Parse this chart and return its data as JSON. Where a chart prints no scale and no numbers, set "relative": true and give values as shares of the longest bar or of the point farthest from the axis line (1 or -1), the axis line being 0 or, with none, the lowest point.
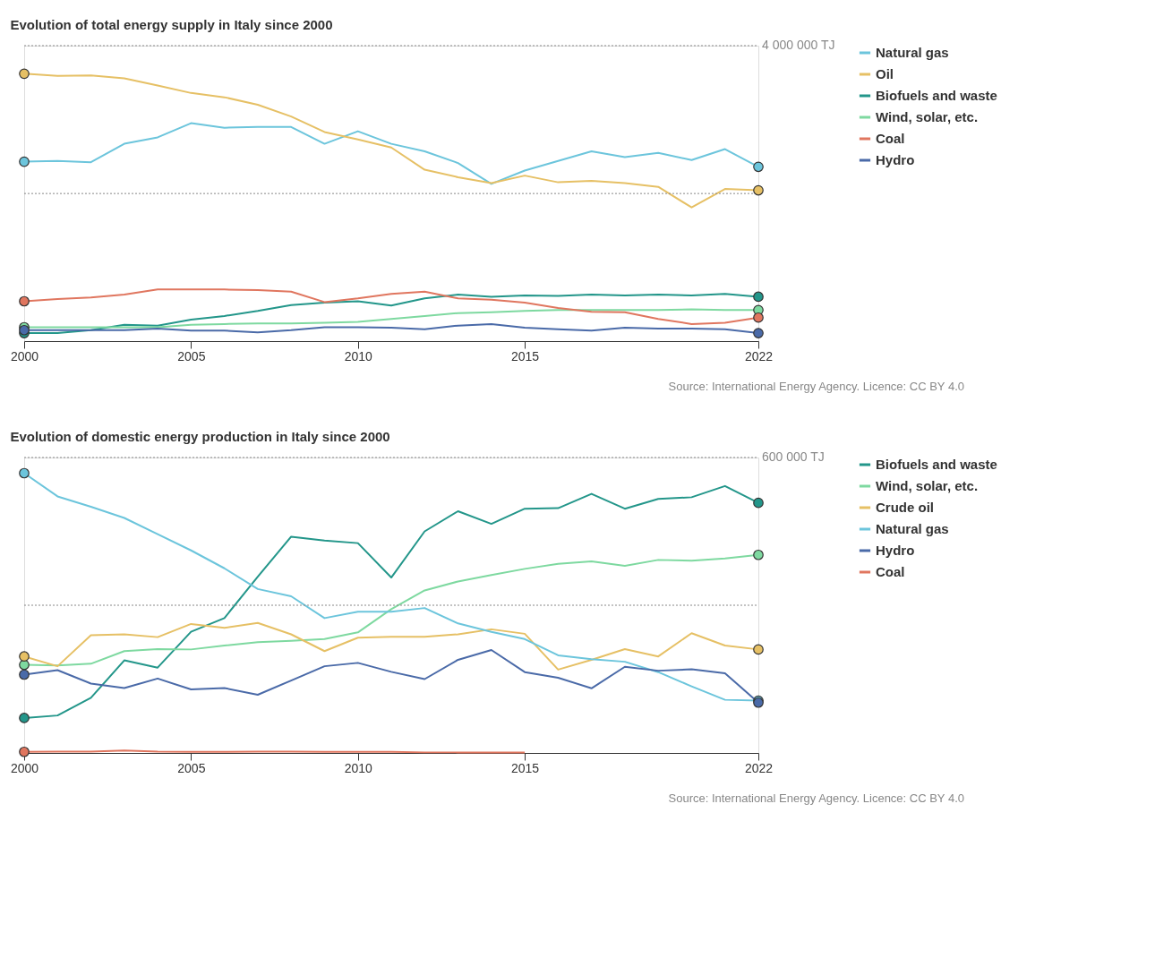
{
  "chart_data": [
    {
      "type": "line",
      "title": "Evolution of total energy supply in Italy since 2000",
      "relative": true,
      "x": [
        2000,
        2001,
        2002,
        2003,
        2004,
        2005,
        2006,
        2007,
        2008,
        2009,
        2010,
        2011,
        2012,
        2013,
        2014,
        2015,
        2016,
        2017,
        2018,
        2019,
        2020,
        2021,
        2022
      ],
      "xlim": [
        2000,
        2022
      ],
      "xticks": [
        2000,
        2005,
        2010,
        2015,
        2022
      ],
      "ref_lines": [
        {
          "axis": "y",
          "value": 0.552,
          "label": null,
          "line_style": "dotted"
        },
        {
          "axis": "y",
          "value": 1.105,
          "label": "4 000 000 TJ",
          "line_style": "dotted"
        }
      ],
      "legend": "right",
      "line_style": "solid",
      "annotations": [
        "Source: International Energy Agency. Licence: CC BY 4.0"
      ],
      "series": [
        {
          "name": "Natural gas",
          "color": "#6cc5dc",
          "values": [
            0.671,
            0.674,
            0.669,
            0.738,
            0.762,
            0.815,
            0.798,
            0.801,
            0.801,
            0.738,
            0.785,
            0.738,
            0.71,
            0.666,
            0.588,
            0.638,
            0.674,
            0.71,
            0.688,
            0.704,
            0.677,
            0.718,
            0.652
          ]
        },
        {
          "name": "Oil",
          "color": "#e6c065",
          "values": [
            1,
            0.992,
            0.994,
            0.983,
            0.956,
            0.928,
            0.912,
            0.884,
            0.84,
            0.782,
            0.754,
            0.724,
            0.641,
            0.613,
            0.591,
            0.619,
            0.594,
            0.599,
            0.591,
            0.577,
            0.5,
            0.569,
            0.564
          ]
        },
        {
          "name": "Biofuels and waste",
          "color": "#23968a",
          "values": [
            0.03,
            0.03,
            0.041,
            0.061,
            0.058,
            0.08,
            0.094,
            0.113,
            0.135,
            0.144,
            0.149,
            0.133,
            0.16,
            0.174,
            0.166,
            0.171,
            0.169,
            0.174,
            0.171,
            0.174,
            0.171,
            0.177,
            0.166
          ]
        },
        {
          "name": "Wind, solar, etc.",
          "color": "#7ed9a0",
          "values": [
            0.052,
            0.052,
            0.052,
            0.052,
            0.052,
            0.061,
            0.064,
            0.066,
            0.066,
            0.069,
            0.072,
            0.083,
            0.094,
            0.105,
            0.108,
            0.113,
            0.116,
            0.116,
            0.116,
            0.116,
            0.119,
            0.116,
            0.116
          ]
        },
        {
          "name": "Coal",
          "color": "#e0765f",
          "values": [
            0.149,
            0.157,
            0.163,
            0.174,
            0.193,
            0.193,
            0.193,
            0.191,
            0.185,
            0.146,
            0.16,
            0.177,
            0.185,
            0.16,
            0.155,
            0.144,
            0.124,
            0.11,
            0.108,
            0.083,
            0.064,
            0.069,
            0.088
          ]
        },
        {
          "name": "Hydro",
          "color": "#4a6aa8",
          "values": [
            0.041,
            0.041,
            0.041,
            0.041,
            0.047,
            0.039,
            0.039,
            0.033,
            0.041,
            0.052,
            0.052,
            0.05,
            0.044,
            0.058,
            0.064,
            0.05,
            0.044,
            0.039,
            0.05,
            0.047,
            0.047,
            0.044,
            0.03
          ]
        },
        {
          "type": "scatter",
          "marker": "circle",
          "color": "#6cc5dc",
          "values": [
            0.671,
            null,
            null,
            null,
            null,
            null,
            null,
            null,
            null,
            null,
            null,
            null,
            null,
            null,
            null,
            null,
            null,
            null,
            null,
            null,
            null,
            null,
            0.652
          ]
        },
        {
          "type": "scatter",
          "marker": "circle",
          "color": "#e6c065",
          "values": [
            1,
            null,
            null,
            null,
            null,
            null,
            null,
            null,
            null,
            null,
            null,
            null,
            null,
            null,
            null,
            null,
            null,
            null,
            null,
            null,
            null,
            null,
            0.564
          ]
        },
        {
          "type": "scatter",
          "marker": "circle",
          "color": "#23968a",
          "values": [
            0.03,
            null,
            null,
            null,
            null,
            null,
            null,
            null,
            null,
            null,
            null,
            null,
            null,
            null,
            null,
            null,
            null,
            null,
            null,
            null,
            null,
            null,
            0.166
          ]
        },
        {
          "type": "scatter",
          "marker": "circle",
          "color": "#7ed9a0",
          "values": [
            0.052,
            null,
            null,
            null,
            null,
            null,
            null,
            null,
            null,
            null,
            null,
            null,
            null,
            null,
            null,
            null,
            null,
            null,
            null,
            null,
            null,
            null,
            0.116
          ]
        },
        {
          "type": "scatter",
          "marker": "circle",
          "color": "#e0765f",
          "values": [
            0.149,
            null,
            null,
            null,
            null,
            null,
            null,
            null,
            null,
            null,
            null,
            null,
            null,
            null,
            null,
            null,
            null,
            null,
            null,
            null,
            null,
            null,
            0.088
          ]
        },
        {
          "type": "scatter",
          "marker": "circle",
          "color": "#4a6aa8",
          "values": [
            0.041,
            null,
            null,
            null,
            null,
            null,
            null,
            null,
            null,
            null,
            null,
            null,
            null,
            null,
            null,
            null,
            null,
            null,
            null,
            null,
            null,
            null,
            0.03
          ]
        }
      ]
    },
    {
      "type": "line",
      "title": "Evolution of domestic energy production in Italy since 2000",
      "relative": true,
      "x": [
        2000,
        2001,
        2002,
        2003,
        2004,
        2005,
        2006,
        2007,
        2008,
        2009,
        2010,
        2011,
        2012,
        2013,
        2014,
        2015,
        2016,
        2017,
        2018,
        2019,
        2020,
        2021,
        2022
      ],
      "xlim": [
        2000,
        2022
      ],
      "xticks": [
        2000,
        2005,
        2010,
        2015,
        2022
      ],
      "ref_lines": [
        {
          "axis": "y",
          "value": 0.528,
          "label": null,
          "line_style": "dotted"
        },
        {
          "axis": "y",
          "value": 1.056,
          "label": "600 000 TJ",
          "line_style": "dotted"
        }
      ],
      "legend": "right",
      "line_style": "solid",
      "annotations": [
        "Source: International Energy Agency. Licence: CC BY 4.0"
      ],
      "series": [
        {
          "name": "Biofuels and waste",
          "color": "#23968a",
          "values": [
            0.125,
            0.134,
            0.197,
            0.331,
            0.305,
            0.433,
            0.482,
            0.63,
            0.773,
            0.759,
            0.75,
            0.627,
            0.792,
            0.864,
            0.819,
            0.873,
            0.875,
            0.926,
            0.873,
            0.908,
            0.914,
            0.954,
            0.894
          ]
        },
        {
          "name": "Wind, solar, etc.",
          "color": "#7ed9a0",
          "values": [
            0.315,
            0.313,
            0.319,
            0.364,
            0.371,
            0.37,
            0.384,
            0.396,
            0.401,
            0.407,
            0.431,
            0.514,
            0.581,
            0.613,
            0.636,
            0.658,
            0.676,
            0.685,
            0.669,
            0.69,
            0.687,
            0.695,
            0.708
          ]
        },
        {
          "name": "Crude oil",
          "color": "#e6c065",
          "values": [
            0.345,
            0.31,
            0.421,
            0.424,
            0.414,
            0.461,
            0.447,
            0.465,
            0.424,
            0.364,
            0.412,
            0.415,
            0.415,
            0.424,
            0.442,
            0.426,
            0.298,
            0.333,
            0.371,
            0.345,
            0.428,
            0.384,
            0.37
          ]
        },
        {
          "name": "Natural gas",
          "color": "#6cc5dc",
          "values": [
            1,
            0.917,
            0.88,
            0.84,
            0.782,
            0.724,
            0.66,
            0.586,
            0.56,
            0.482,
            0.505,
            0.505,
            0.518,
            0.463,
            0.433,
            0.407,
            0.349,
            0.335,
            0.326,
            0.289,
            0.238,
            0.19,
            0.187
          ]
        },
        {
          "name": "Hydro",
          "color": "#4a6aa8",
          "values": [
            0.28,
            0.296,
            0.248,
            0.232,
            0.266,
            0.227,
            0.232,
            0.208,
            0.259,
            0.31,
            0.322,
            0.29,
            0.264,
            0.333,
            0.368,
            0.289,
            0.269,
            0.231,
            0.308,
            0.294,
            0.299,
            0.285,
            0.18
          ]
        },
        {
          "name": "Coal",
          "color": "#e0765f",
          "values": [
            0.004,
            0.005,
            0.005,
            0.009,
            0.005,
            0.004,
            0.004,
            0.005,
            0.005,
            0.004,
            0.004,
            0.004,
            0.002,
            0.002,
            0.002,
            0.002,
            null,
            null,
            null,
            null,
            null,
            null,
            null
          ]
        },
        {
          "type": "scatter",
          "marker": "circle",
          "color": "#23968a",
          "values": [
            0.125,
            null,
            null,
            null,
            null,
            null,
            null,
            null,
            null,
            null,
            null,
            null,
            null,
            null,
            null,
            null,
            null,
            null,
            null,
            null,
            null,
            null,
            0.894
          ]
        },
        {
          "type": "scatter",
          "marker": "circle",
          "color": "#7ed9a0",
          "values": [
            0.315,
            null,
            null,
            null,
            null,
            null,
            null,
            null,
            null,
            null,
            null,
            null,
            null,
            null,
            null,
            null,
            null,
            null,
            null,
            null,
            null,
            null,
            0.708
          ]
        },
        {
          "type": "scatter",
          "marker": "circle",
          "color": "#e6c065",
          "values": [
            0.345,
            null,
            null,
            null,
            null,
            null,
            null,
            null,
            null,
            null,
            null,
            null,
            null,
            null,
            null,
            null,
            null,
            null,
            null,
            null,
            null,
            null,
            0.37
          ]
        },
        {
          "type": "scatter",
          "marker": "circle",
          "color": "#6cc5dc",
          "values": [
            1,
            null,
            null,
            null,
            null,
            null,
            null,
            null,
            null,
            null,
            null,
            null,
            null,
            null,
            null,
            null,
            null,
            null,
            null,
            null,
            null,
            null,
            0.187
          ]
        },
        {
          "type": "scatter",
          "marker": "circle",
          "color": "#4a6aa8",
          "values": [
            0.28,
            null,
            null,
            null,
            null,
            null,
            null,
            null,
            null,
            null,
            null,
            null,
            null,
            null,
            null,
            null,
            null,
            null,
            null,
            null,
            null,
            null,
            0.18
          ]
        },
        {
          "type": "scatter",
          "marker": "circle",
          "color": "#e0765f",
          "values": [
            0.004,
            null,
            null,
            null,
            null,
            null,
            null,
            null,
            null,
            null,
            null,
            null,
            null,
            null,
            null,
            null,
            null,
            null,
            null,
            null,
            null,
            null,
            null
          ]
        }
      ]
    }
  ]
}
